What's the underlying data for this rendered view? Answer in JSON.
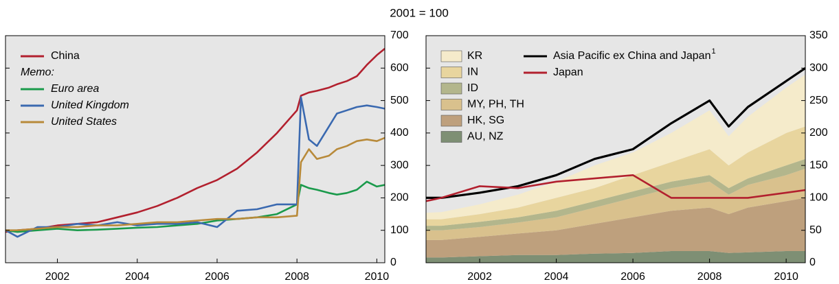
{
  "subtitle": "2001 = 100",
  "chart_data": [
    {
      "type": "line",
      "legend": "upper left",
      "legend_heading": "Memo:",
      "x": [
        2000.7,
        2001,
        2001.5,
        2002,
        2002.5,
        2003,
        2003.5,
        2004,
        2004.5,
        2005,
        2005.5,
        2006,
        2006.5,
        2007,
        2007.5,
        2008,
        2008.1,
        2008.3,
        2008.5,
        2008.8,
        2009,
        2009.25,
        2009.5,
        2009.75,
        2010,
        2010.2
      ],
      "xlim": [
        2000.7,
        2010.2
      ],
      "xticks": [
        2002,
        2004,
        2006,
        2008,
        2010
      ],
      "ylim": [
        0,
        700
      ],
      "yticks": [
        0,
        100,
        200,
        300,
        400,
        500,
        600,
        700
      ],
      "series": [
        {
          "name": "China",
          "color": "#b2202e",
          "values": [
            95,
            100,
            105,
            115,
            120,
            125,
            140,
            155,
            175,
            200,
            230,
            255,
            290,
            340,
            400,
            470,
            515,
            525,
            530,
            540,
            550,
            560,
            575,
            610,
            640,
            660
          ]
        },
        {
          "name": "Euro area",
          "color": "#1a9a4b",
          "values": [
            100,
            95,
            100,
            105,
            100,
            102,
            105,
            108,
            110,
            115,
            120,
            130,
            135,
            140,
            150,
            180,
            240,
            230,
            225,
            215,
            210,
            215,
            225,
            250,
            235,
            240
          ]
        },
        {
          "name": "United Kingdom",
          "color": "#3a69b0",
          "values": [
            100,
            80,
            110,
            110,
            120,
            115,
            125,
            115,
            120,
            120,
            125,
            110,
            160,
            165,
            180,
            180,
            510,
            380,
            360,
            420,
            460,
            470,
            480,
            485,
            480,
            475
          ]
        },
        {
          "name": "United States",
          "color": "#b88a3a",
          "values": [
            100,
            100,
            105,
            110,
            110,
            115,
            115,
            120,
            125,
            125,
            130,
            135,
            135,
            140,
            140,
            145,
            310,
            350,
            320,
            330,
            350,
            360,
            375,
            380,
            375,
            385
          ]
        }
      ]
    },
    {
      "type": "area",
      "stacked": true,
      "legend": "upper left",
      "x": [
        2000.6,
        2001,
        2002,
        2003,
        2004,
        2005,
        2006,
        2007,
        2008,
        2008.5,
        2009,
        2010,
        2010.5
      ],
      "xlim": [
        2000.6,
        2010.5
      ],
      "xticks": [
        2002,
        2004,
        2006,
        2008,
        2010
      ],
      "ylim": [
        0,
        350
      ],
      "yticks": [
        0,
        50,
        100,
        150,
        200,
        250,
        300,
        350
      ],
      "series": [
        {
          "name": "AU, NZ",
          "type": "area",
          "color": "#7e8f74",
          "values": [
            8,
            8,
            10,
            12,
            12,
            14,
            15,
            18,
            18,
            15,
            16,
            18,
            18
          ]
        },
        {
          "name": "HK, SG",
          "type": "area",
          "color": "#bea07d",
          "values": [
            27,
            27,
            30,
            33,
            38,
            46,
            55,
            62,
            67,
            60,
            69,
            77,
            82
          ]
        },
        {
          "name": "MY, PH, TH",
          "type": "area",
          "color": "#d9c18d",
          "values": [
            15,
            15,
            15,
            17,
            20,
            25,
            30,
            35,
            40,
            30,
            35,
            40,
            45
          ]
        },
        {
          "name": "ID",
          "type": "area",
          "color": "#b3b68c",
          "values": [
            7,
            7,
            8,
            8,
            10,
            10,
            10,
            10,
            10,
            10,
            10,
            15,
            15
          ]
        },
        {
          "name": "IN",
          "type": "area",
          "color": "#e8d59e",
          "values": [
            10,
            10,
            12,
            15,
            20,
            20,
            25,
            30,
            40,
            35,
            40,
            50,
            50
          ]
        },
        {
          "name": "KR",
          "type": "area",
          "color": "#f5ebcb",
          "values": [
            10,
            11,
            15,
            20,
            25,
            35,
            35,
            45,
            60,
            45,
            55,
            70,
            80
          ]
        },
        {
          "name": "Asia Pacific ex China and Japan",
          "name_superscript": "1",
          "type": "line",
          "color": "#000000",
          "values": [
            100,
            100,
            108,
            118,
            135,
            160,
            175,
            215,
            250,
            210,
            240,
            280,
            300
          ]
        },
        {
          "name": "Japan",
          "type": "line",
          "color": "#b2202e",
          "values": [
            95,
            100,
            118,
            115,
            125,
            130,
            135,
            100,
            100,
            100,
            100,
            108,
            112
          ]
        }
      ]
    }
  ]
}
